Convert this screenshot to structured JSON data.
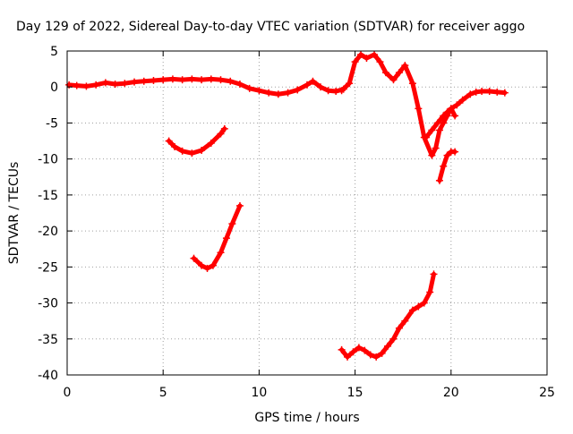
{
  "chart_data": {
    "type": "scatter",
    "title": "Day 129 of 2022, Sidereal Day-to-day VTEC variation (SDTVAR) for receiver aggo",
    "xlabel": "GPS time / hours",
    "ylabel": "SDTVAR / TECUs",
    "xlim": [
      0,
      25
    ],
    "ylim": [
      -40,
      5
    ],
    "xticks": [
      "0",
      "5",
      "10",
      "15",
      "20",
      "25"
    ],
    "yticks": [
      "5",
      "0",
      "-5",
      "-10",
      "-15",
      "-20",
      "-25",
      "-30",
      "-35",
      "-40"
    ],
    "grid": true,
    "marker": "+",
    "series_color": "#ff0000",
    "segments": [
      {
        "x": [
          0.1,
          0.5,
          1.0,
          1.5,
          2.0,
          2.5,
          3.0,
          3.5,
          4.0,
          4.5,
          5.0,
          5.5,
          6.0,
          6.5,
          7.0,
          7.5,
          8.0,
          8.5,
          9.0,
          9.5,
          10.0,
          10.5,
          11.0,
          11.5,
          12.0,
          12.5,
          12.8,
          13.2,
          13.6,
          14.0,
          14.4
        ],
        "y": [
          0.3,
          0.2,
          0.1,
          0.3,
          0.6,
          0.4,
          0.5,
          0.7,
          0.8,
          0.9,
          1.0,
          1.1,
          1.0,
          1.1,
          1.0,
          1.1,
          1.0,
          0.8,
          0.4,
          -0.2,
          -0.5,
          -0.8,
          -1.0,
          -0.8,
          -0.4,
          0.3,
          0.8,
          0.0,
          -0.5,
          -0.6,
          -0.3
        ]
      },
      {
        "x": [
          14.3,
          14.7,
          15.0,
          15.3,
          15.6,
          16.0,
          16.3,
          16.6,
          17.0,
          17.3,
          17.6,
          18.0,
          18.3,
          18.6,
          19.0,
          19.2,
          19.4,
          19.6,
          19.8,
          20.0,
          20.3,
          20.6,
          21.0,
          21.3,
          21.6,
          22.0,
          22.4,
          22.8
        ],
        "y": [
          -0.5,
          0.5,
          3.5,
          4.5,
          4.0,
          4.5,
          3.5,
          2.0,
          1.0,
          2.0,
          3.0,
          0.5,
          -3.0,
          -7.0,
          -9.5,
          -8.5,
          -6.0,
          -5.0,
          -4.0,
          -3.0,
          -2.5,
          -1.8,
          -1.0,
          -0.7,
          -0.6,
          -0.6,
          -0.7,
          -0.8
        ]
      },
      {
        "x": [
          18.7,
          19.0,
          19.3,
          19.6,
          19.8,
          20.0,
          20.2
        ],
        "y": [
          -7.0,
          -6.0,
          -5.0,
          -4.0,
          -3.5,
          -3.0,
          -4.0
        ]
      },
      {
        "x": [
          19.4,
          19.6,
          19.8,
          20.0,
          20.2
        ],
        "y": [
          -13.0,
          -11.0,
          -9.5,
          -9.0,
          -9.0
        ]
      },
      {
        "x": [
          5.3,
          5.6,
          6.0,
          6.5,
          7.0,
          7.5,
          8.0,
          8.2
        ],
        "y": [
          -7.5,
          -8.3,
          -8.9,
          -9.2,
          -8.8,
          -7.8,
          -6.5,
          -5.8
        ]
      },
      {
        "x": [
          6.6,
          7.0,
          7.3,
          7.6,
          8.0,
          8.3,
          8.6,
          9.0
        ],
        "y": [
          -23.8,
          -24.8,
          -25.2,
          -24.8,
          -23.0,
          -21.0,
          -19.0,
          -16.5
        ]
      },
      {
        "x": [
          14.3,
          14.6,
          14.9,
          15.2,
          15.5,
          15.8,
          16.1,
          16.4,
          16.7,
          17.0,
          17.3,
          17.6,
          18.0,
          18.3,
          18.6,
          18.9,
          19.1
        ],
        "y": [
          -36.5,
          -37.5,
          -36.8,
          -36.2,
          -36.6,
          -37.2,
          -37.5,
          -37.0,
          -36.0,
          -35.0,
          -33.5,
          -32.5,
          -31.0,
          -30.5,
          -30.0,
          -28.5,
          -26.0
        ]
      }
    ]
  }
}
